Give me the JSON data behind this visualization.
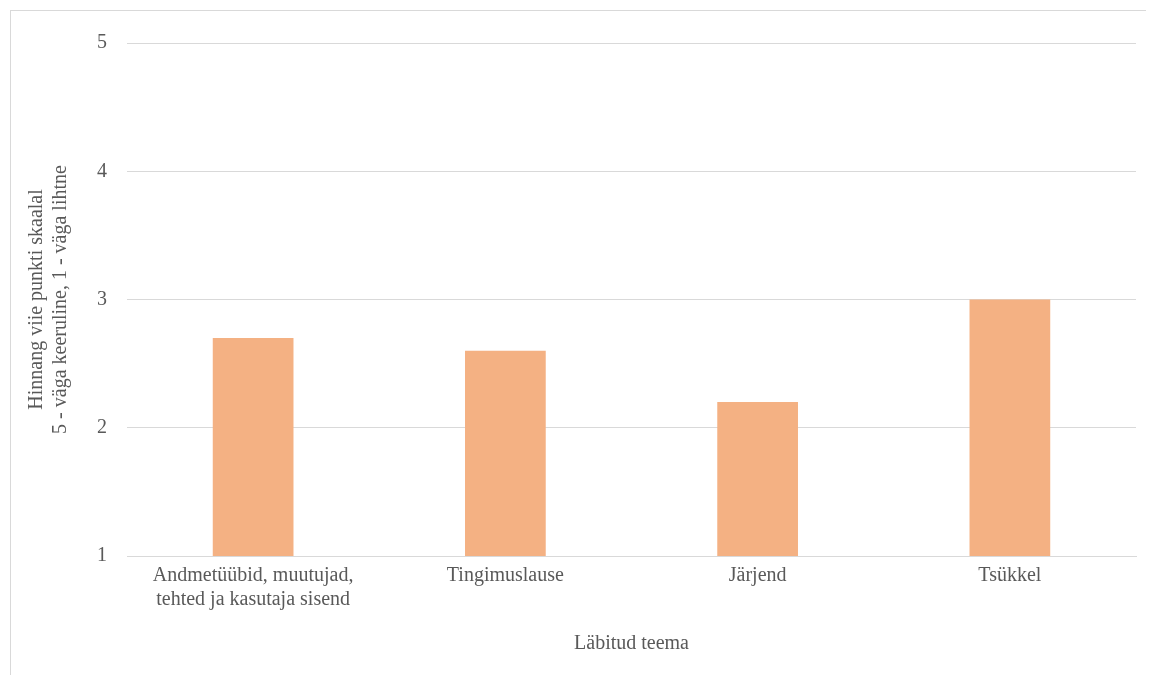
{
  "chart_data": {
    "type": "bar",
    "xlabel": "Läbitud teema",
    "ylabel": "Hinnang viie punkti skaalal\n5 - väga keeruline, 1 - väga lihtne",
    "categories": [
      "Andmetüübid, muutujad, tehted ja kasutaja sisend",
      "Tingimuslause",
      "Järjend",
      "Tsükkel"
    ],
    "values": [
      2.7,
      2.6,
      2.2,
      3.0
    ],
    "color": "#f4b183",
    "ylim": [
      1,
      5
    ],
    "yticks": [
      1,
      2,
      3,
      4,
      5
    ],
    "grid": "y",
    "legend": false
  }
}
